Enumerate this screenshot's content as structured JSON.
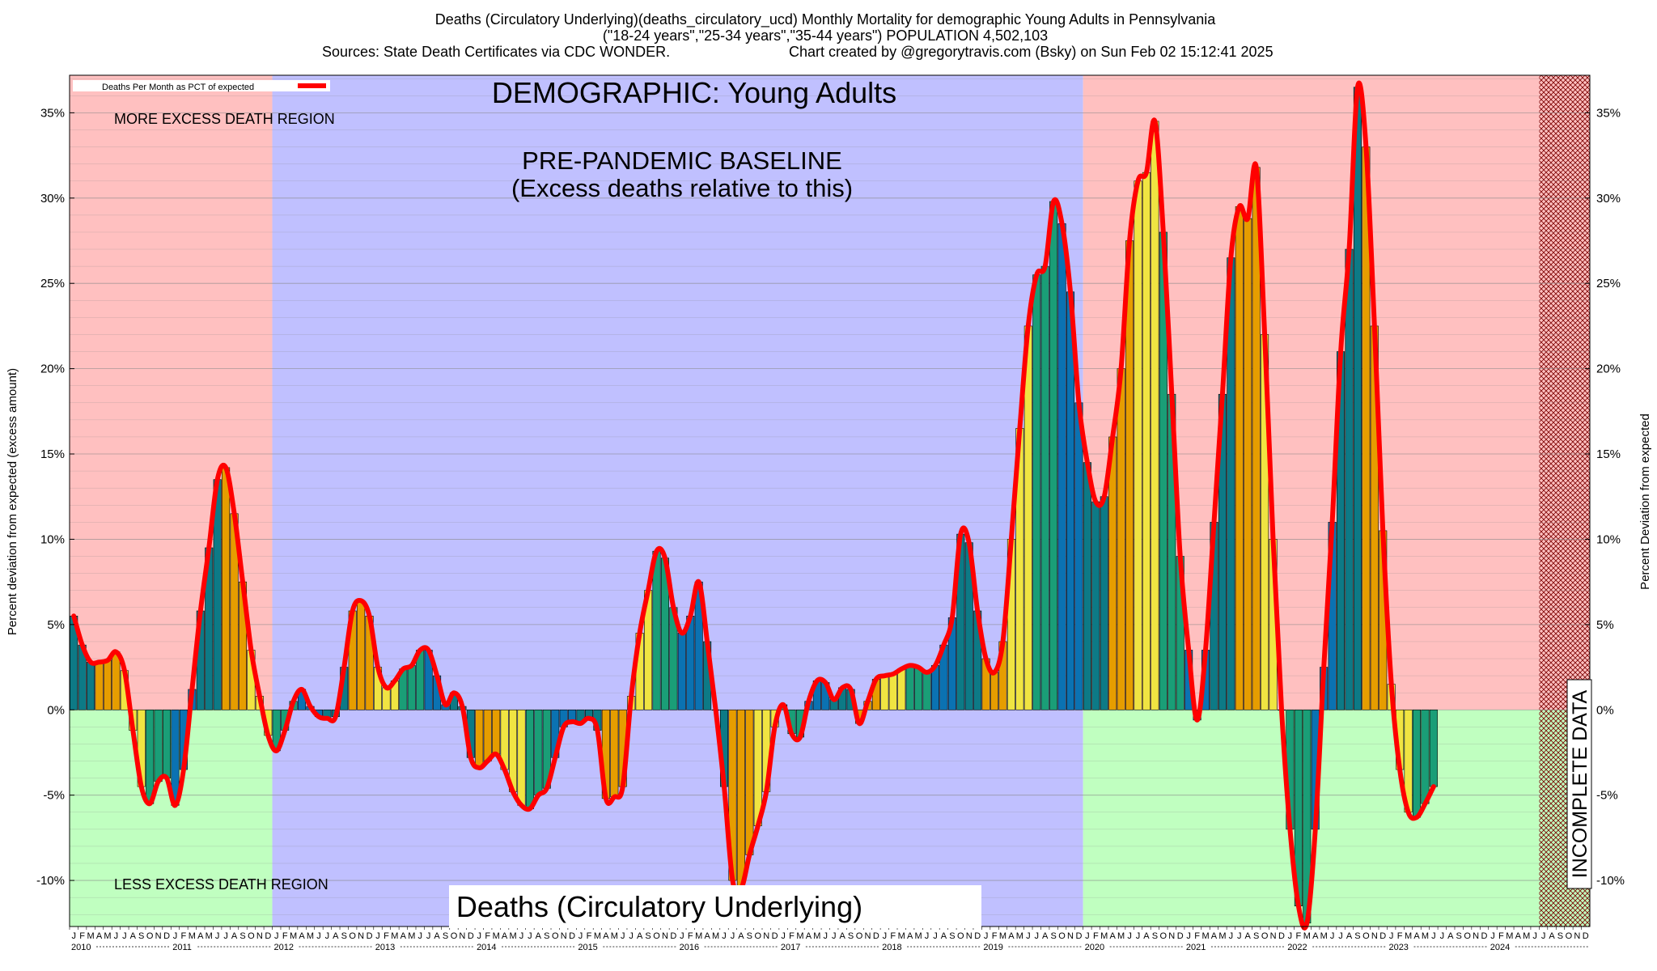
{
  "header": {
    "line1": "Deaths (Circulatory Underlying)(deaths_circulatory_ucd) Monthly Mortality for demographic Young Adults in Pennsylvania",
    "line2": "(\"18-24 years\",\"25-34 years\",\"35-44 years\") POPULATION 4,502,103",
    "line3_left": "Sources: State Death Certificates via CDC WONDER.",
    "line3_right": "Chart created by @gregorytravis.com (Bsky) on Sun Feb 02 15:12:41 2025"
  },
  "labels": {
    "demographic": "DEMOGRAPHIC: Young Adults",
    "baseline_title": "PRE-PANDEMIC BASELINE",
    "baseline_sub": "(Excess deaths relative to this)",
    "more_excess": "MORE EXCESS DEATH REGION",
    "less_excess": "LESS EXCESS DEATH REGION",
    "bottom_title": "Deaths (Circulatory Underlying)",
    "incomplete": "INCOMPLETE DATA",
    "legend": "Deaths Per Month as PCT of expected",
    "ylabel_left": "Percent deviation from expected (excess amount)",
    "ylabel_right": "Percent Deviation from expected"
  },
  "colors": {
    "more_excess_bg": "#ffc0c0",
    "less_excess_bg": "#c0ffc0",
    "baseline_bg": "#c0c0ff",
    "line": "#ff0000",
    "bar_palette": [
      "#0d7a86",
      "#e69d00",
      "#f0e442",
      "#1a9e77",
      "#0b72b2"
    ],
    "hatch": "#8b0000"
  },
  "chart_data": {
    "type": "bar",
    "title": "Deaths (Circulatory Underlying)(deaths_circulatory_ucd) Monthly Mortality for demographic Young Adults in Pennsylvania",
    "ylabel": "Percent deviation from expected (excess amount)",
    "ylabel_right": "Percent Deviation from expected",
    "ylim": [
      -12.7,
      37.2
    ],
    "yticks": [
      -10,
      -5,
      0,
      5,
      10,
      15,
      20,
      25,
      30,
      35
    ],
    "ytick_labels": [
      "-10%",
      "-5%",
      "0%",
      "5%",
      "10%",
      "15%",
      "20%",
      "25%",
      "30%",
      "35%"
    ],
    "x_start": "2010-01",
    "month_letters": [
      "J",
      "F",
      "M",
      "A",
      "M",
      "J",
      "J",
      "A",
      "S",
      "O",
      "N",
      "D"
    ],
    "years": [
      "2010",
      "2011",
      "2012",
      "2013",
      "2014",
      "2015",
      "2016",
      "2017",
      "2018",
      "2019",
      "2020",
      "2021",
      "2022",
      "2023",
      "2024"
    ],
    "baseline_period": [
      "2012-01",
      "2019-12"
    ],
    "incomplete_from": "2024-07",
    "legend_position": "top-left",
    "grid": true,
    "series": [
      {
        "name": "Deaths Per Month as PCT of expected",
        "values": [
          5.5,
          3.8,
          2.8,
          2.8,
          2.9,
          3.4,
          2.3,
          -1.2,
          -4.5,
          -5.5,
          -4.2,
          -4.0,
          -5.6,
          -3.5,
          1.2,
          5.8,
          9.5,
          13.5,
          14.2,
          11.5,
          7.5,
          3.5,
          0.8,
          -1.5,
          -2.4,
          -1.2,
          0.5,
          1.2,
          0.2,
          -0.4,
          -0.5,
          -0.4,
          2.5,
          5.8,
          6.4,
          5.5,
          2.5,
          1.3,
          1.7,
          2.4,
          2.6,
          3.5,
          3.5,
          2.0,
          0.3,
          1.0,
          0.2,
          -2.8,
          -3.4,
          -3.0,
          -2.6,
          -3.5,
          -4.8,
          -5.6,
          -5.8,
          -5.0,
          -4.6,
          -2.8,
          -1.0,
          -0.7,
          -0.8,
          -0.5,
          -1.2,
          -5.2,
          -5.1,
          -4.5,
          0.8,
          4.5,
          7.0,
          9.3,
          8.9,
          6.0,
          4.5,
          5.5,
          7.5,
          4.0,
          0.0,
          -4.5,
          -10.0,
          -10.5,
          -8.5,
          -6.8,
          -4.8,
          -1.0,
          0.3,
          -1.4,
          -1.6,
          0.5,
          1.7,
          1.6,
          0.6,
          1.3,
          1.2,
          -0.8,
          0.5,
          1.8,
          2.0,
          2.1,
          2.4,
          2.6,
          2.5,
          2.2,
          2.6,
          3.8,
          5.4,
          10.3,
          9.8,
          5.8,
          3.0,
          2.2,
          4.0,
          10.0,
          16.5,
          22.5,
          25.5,
          26.0,
          29.8,
          28.5,
          24.5,
          18.0,
          14.5,
          12.2,
          12.5,
          16.0,
          20.0,
          27.5,
          31.0,
          31.5,
          34.5,
          28.0,
          18.5,
          9.0,
          3.5,
          -0.6,
          3.5,
          11.0,
          18.5,
          26.5,
          29.5,
          28.8,
          31.8,
          22.0,
          10.0,
          0.0,
          -7.0,
          -11.5,
          -12.5,
          -7.0,
          2.5,
          11.0,
          21.0,
          27.0,
          36.5,
          33.0,
          22.5,
          10.5,
          1.5,
          -3.5,
          -6.0,
          -6.3,
          -5.5,
          -4.5
        ]
      }
    ]
  }
}
